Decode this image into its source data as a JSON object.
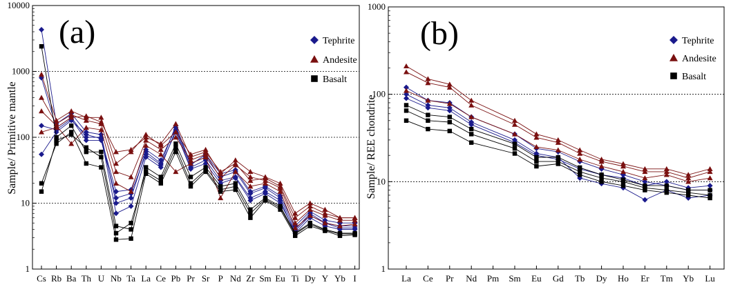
{
  "colors": {
    "tephrite": "#1a1a8c",
    "andesite": "#7a1010",
    "basalt": "#000000",
    "frame": "#000000",
    "refline": "#000000"
  },
  "chart_data": [
    {
      "type": "line",
      "panel": "(a)",
      "title": "",
      "xlabel": "",
      "ylabel": "Sample/ Primitive mantle",
      "yscale": "log",
      "ylim": [
        1,
        10000
      ],
      "yticks": [
        "1",
        "10",
        "100",
        "1000",
        "10000"
      ],
      "reference_lines": [
        10,
        100,
        1000
      ],
      "categories": [
        "Cs",
        "Rb",
        "Ba",
        "Th",
        "U",
        "Nb",
        "Ta",
        "La",
        "Ce",
        "Pb",
        "Pr",
        "Sr",
        "P",
        "Nd",
        "Zr",
        "Sm",
        "Eu",
        "Ti",
        "Dy",
        "Y",
        "Yb",
        "I"
      ],
      "legend": {
        "placement": "top-right",
        "entries": [
          {
            "name": "Tephrite",
            "marker": "diamond"
          },
          {
            "name": "Andesite",
            "marker": "triangle"
          },
          {
            "name": "Basalt",
            "marker": "square"
          }
        ]
      },
      "series": [
        {
          "name": "Tephrite",
          "values": [
            4300,
            160,
            230,
            120,
            110,
            10,
            12,
            60,
            40,
            150,
            40,
            50,
            25,
            30,
            14,
            17,
            12,
            4,
            7,
            5,
            4.5,
            4.5
          ]
        },
        {
          "name": "Tephrite",
          "values": [
            800,
            140,
            200,
            100,
            100,
            7,
            9,
            50,
            35,
            130,
            35,
            45,
            22,
            25,
            12,
            15,
            11,
            3.5,
            6,
            4.5,
            4,
            4
          ]
        },
        {
          "name": "Tephrite",
          "values": [
            150,
            130,
            190,
            90,
            90,
            12,
            14,
            55,
            38,
            120,
            33,
            40,
            20,
            24,
            11,
            14,
            10,
            3.8,
            6.5,
            5,
            4.2,
            4.2
          ]
        },
        {
          "name": "Tephrite",
          "values": [
            55,
            120,
            180,
            110,
            95,
            15,
            16,
            65,
            45,
            140,
            38,
            55,
            28,
            32,
            15,
            18,
            13,
            4.5,
            7.5,
            5.5,
            5,
            5
          ]
        },
        {
          "name": "Andesite",
          "values": [
            900,
            180,
            250,
            200,
            200,
            40,
            60,
            110,
            75,
            120,
            55,
            65,
            28,
            45,
            30,
            25,
            20,
            7,
            10,
            8,
            6,
            6
          ]
        },
        {
          "name": "Andesite",
          "values": [
            400,
            160,
            220,
            180,
            160,
            30,
            25,
            90,
            65,
            100,
            45,
            55,
            24,
            38,
            25,
            22,
            17,
            5,
            8,
            6.5,
            5.5,
            5.5
          ]
        },
        {
          "name": "Andesite",
          "values": [
            250,
            150,
            80,
            140,
            130,
            20,
            15,
            75,
            55,
            30,
            40,
            50,
            12,
            30,
            18,
            20,
            15,
            4.2,
            6.5,
            5,
            4.5,
            4.8
          ]
        },
        {
          "name": "Andesite",
          "values": [
            120,
            140,
            200,
            210,
            170,
            60,
            65,
            100,
            80,
            160,
            50,
            60,
            30,
            40,
            22,
            24,
            18,
            6,
            9,
            7,
            6,
            6
          ]
        },
        {
          "name": "Basalt",
          "values": [
            2400,
            100,
            150,
            60,
            60,
            4.5,
            4,
            35,
            25,
            80,
            25,
            35,
            18,
            20,
            8,
            12,
            9,
            3.5,
            5,
            4,
            3.5,
            3.5
          ]
        },
        {
          "name": "Basalt",
          "values": [
            20,
            80,
            120,
            40,
            35,
            2.8,
            2.9,
            28,
            20,
            60,
            18,
            30,
            15,
            16,
            6,
            11,
            8,
            3.2,
            4.5,
            3.8,
            3.2,
            3.3
          ]
        },
        {
          "name": "Basalt",
          "values": [
            15,
            90,
            110,
            70,
            50,
            3.5,
            5,
            30,
            22,
            70,
            20,
            32,
            16,
            18,
            7,
            11.5,
            8.5,
            3.4,
            4.8,
            3.9,
            3.4,
            3.4
          ]
        }
      ]
    },
    {
      "type": "line",
      "panel": "(b)",
      "title": "",
      "xlabel": "",
      "ylabel": "Sample/ REE chondrite",
      "yscale": "log",
      "ylim": [
        1,
        1000
      ],
      "yticks": [
        "1",
        "10",
        "100",
        "1000"
      ],
      "reference_lines": [
        10,
        100
      ],
      "categories": [
        "La",
        "Ce",
        "Pr",
        "Nd",
        "Pm",
        "Sm",
        "Eu",
        "Gd",
        "Tb",
        "Dy",
        "Ho",
        "Er",
        "Tm",
        "Yb",
        "Lu"
      ],
      "legend": {
        "placement": "top-right",
        "entries": [
          {
            "name": "Tephrite",
            "marker": "diamond"
          },
          {
            "name": "Andesite",
            "marker": "triangle"
          },
          {
            "name": "Basalt",
            "marker": "square"
          }
        ]
      },
      "series": [
        {
          "name": "Tephrite",
          "values": [
            120,
            85,
            80,
            55,
            null,
            35,
            24,
            22,
            17,
            14,
            12,
            10,
            9,
            8,
            8
          ]
        },
        {
          "name": "Tephrite",
          "values": [
            100,
            75,
            70,
            48,
            null,
            30,
            21,
            19,
            11,
            9.5,
            8.5,
            6.2,
            8,
            6.5,
            7
          ]
        },
        {
          "name": "Tephrite",
          "values": [
            90,
            70,
            65,
            45,
            null,
            28,
            20,
            18,
            14,
            12,
            11,
            9,
            10,
            8.5,
            9
          ]
        },
        {
          "name": "Andesite",
          "values": [
            210,
            150,
            130,
            85,
            null,
            50,
            35,
            30,
            23,
            18,
            16,
            14,
            14,
            12,
            14
          ]
        },
        {
          "name": "Andesite",
          "values": [
            180,
            135,
            120,
            75,
            null,
            45,
            32,
            28,
            21,
            17,
            15,
            13,
            13,
            11,
            13
          ]
        },
        {
          "name": "Andesite",
          "values": [
            110,
            85,
            78,
            55,
            null,
            35,
            25,
            23,
            18,
            15,
            13,
            11,
            12,
            10,
            11
          ]
        },
        {
          "name": "Basalt",
          "values": [
            50,
            40,
            38,
            28,
            null,
            21,
            15,
            16,
            12,
            10,
            9,
            8,
            7.5,
            7,
            6.5
          ]
        },
        {
          "name": "Basalt",
          "values": [
            65,
            50,
            48,
            35,
            null,
            24,
            17,
            17,
            13,
            11,
            10,
            8.5,
            8,
            7.5,
            7
          ]
        },
        {
          "name": "Basalt",
          "values": [
            75,
            58,
            55,
            40,
            null,
            27,
            19,
            19,
            14.5,
            12,
            10.5,
            9,
            9,
            8,
            8
          ]
        }
      ]
    }
  ]
}
